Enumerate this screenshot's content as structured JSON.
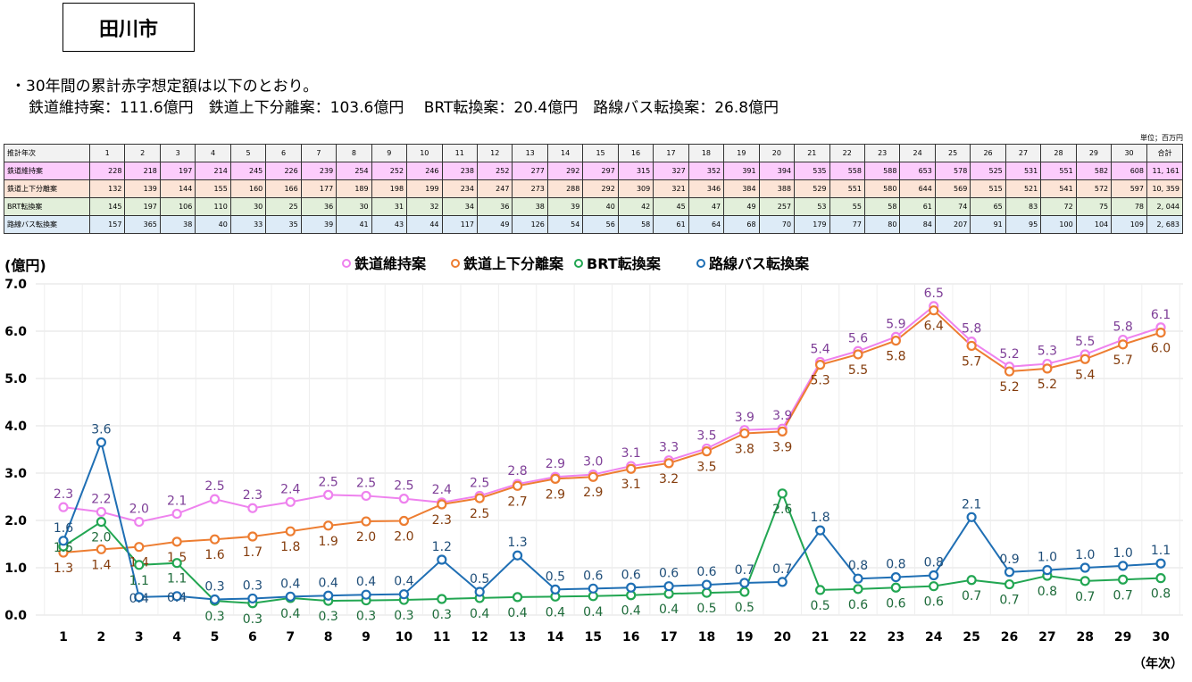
{
  "header": {
    "title": "田川市",
    "note_line1": "・30年間の累計赤字想定額は以下のとおり。",
    "note_line2": "鉄道維持案：111.6億円　鉄道上下分離案：103.6億円　 BRT転換案：20.4億円　路線バス転換案：26.8億円"
  },
  "table": {
    "unit": "単位；百万円",
    "header_label": "推計年次",
    "years": [
      "1",
      "2",
      "3",
      "4",
      "5",
      "6",
      "7",
      "8",
      "9",
      "10",
      "11",
      "12",
      "13",
      "14",
      "15",
      "16",
      "17",
      "18",
      "19",
      "20",
      "21",
      "22",
      "23",
      "24",
      "25",
      "26",
      "27",
      "28",
      "29",
      "30"
    ],
    "total_label": "合計",
    "rows": [
      {
        "label": "鉄道維持案",
        "values": [
          228,
          218,
          197,
          214,
          245,
          226,
          239,
          254,
          252,
          246,
          238,
          252,
          277,
          292,
          297,
          315,
          327,
          352,
          391,
          394,
          535,
          558,
          588,
          653,
          578,
          525,
          531,
          551,
          582,
          608
        ],
        "total": "11, 161"
      },
      {
        "label": "鉄道上下分離案",
        "values": [
          132,
          139,
          144,
          155,
          160,
          166,
          177,
          189,
          198,
          199,
          234,
          247,
          273,
          288,
          292,
          309,
          321,
          346,
          384,
          388,
          529,
          551,
          580,
          644,
          569,
          515,
          521,
          541,
          572,
          597
        ],
        "total": "10, 359"
      },
      {
        "label": "BRT転換案",
        "values": [
          145,
          197,
          106,
          110,
          30,
          25,
          36,
          30,
          31,
          32,
          34,
          36,
          38,
          39,
          40,
          42,
          45,
          47,
          49,
          257,
          53,
          55,
          58,
          61,
          74,
          65,
          83,
          72,
          75,
          78
        ],
        "total": "2, 044"
      },
      {
        "label": "路線バス転換案",
        "values": [
          157,
          365,
          38,
          40,
          33,
          35,
          39,
          41,
          43,
          44,
          117,
          49,
          126,
          54,
          56,
          58,
          61,
          64,
          68,
          70,
          179,
          77,
          80,
          84,
          207,
          91,
          95,
          100,
          104,
          109
        ],
        "total": "2, 683"
      }
    ]
  },
  "chart_data": {
    "type": "line",
    "ylabel": "(億円)",
    "xlabel": "（年次）",
    "ylim": [
      0,
      7
    ],
    "yticks": [
      "0.0",
      "1.0",
      "2.0",
      "3.0",
      "4.0",
      "5.0",
      "6.0",
      "7.0"
    ],
    "grid": true,
    "legend_placement": "top",
    "categories": [
      "1",
      "2",
      "3",
      "4",
      "5",
      "6",
      "7",
      "8",
      "9",
      "10",
      "11",
      "12",
      "13",
      "14",
      "15",
      "16",
      "17",
      "18",
      "19",
      "20",
      "21",
      "22",
      "23",
      "24",
      "25",
      "26",
      "27",
      "28",
      "29",
      "30"
    ],
    "series": [
      {
        "name": "鉄道維持案",
        "color": "#ee82ee",
        "label_color": "#7f3f98",
        "label_pos": "above",
        "values": [
          2.28,
          2.18,
          1.97,
          2.14,
          2.45,
          2.26,
          2.39,
          2.54,
          2.52,
          2.46,
          2.38,
          2.52,
          2.77,
          2.92,
          2.97,
          3.15,
          3.27,
          3.52,
          3.91,
          3.94,
          5.35,
          5.58,
          5.88,
          6.53,
          5.78,
          5.25,
          5.31,
          5.51,
          5.82,
          6.08
        ],
        "labels": [
          "2.3",
          "2.2",
          "2.0",
          "2.1",
          "2.5",
          "2.3",
          "2.4",
          "2.5",
          "2.5",
          "2.5",
          "2.4",
          "2.5",
          "2.8",
          "2.9",
          "3.0",
          "3.1",
          "3.3",
          "3.5",
          "3.9",
          "3.9",
          "5.4",
          "5.6",
          "5.9",
          "6.5",
          "5.8",
          "5.2",
          "5.3",
          "5.5",
          "5.8",
          "6.1"
        ]
      },
      {
        "name": "鉄道上下分離案",
        "color": "#ed7d31",
        "label_color": "#843c0c",
        "label_pos": "below",
        "values": [
          1.32,
          1.39,
          1.44,
          1.55,
          1.6,
          1.66,
          1.77,
          1.89,
          1.98,
          1.99,
          2.34,
          2.47,
          2.73,
          2.88,
          2.92,
          3.09,
          3.21,
          3.46,
          3.84,
          3.88,
          5.29,
          5.51,
          5.8,
          6.44,
          5.69,
          5.15,
          5.21,
          5.41,
          5.72,
          5.97
        ],
        "labels": [
          "1.3",
          "1.4",
          "1.4",
          "1.5",
          "1.6",
          "1.7",
          "1.8",
          "1.9",
          "2.0",
          "2.0",
          "2.3",
          "2.5",
          "2.7",
          "2.9",
          "2.9",
          "3.1",
          "3.2",
          "3.5",
          "3.8",
          "3.9",
          "5.3",
          "5.5",
          "5.8",
          "6.4",
          "5.7",
          "5.2",
          "5.2",
          "5.4",
          "5.7",
          "6.0"
        ]
      },
      {
        "name": "BRT転換案",
        "color": "#22a652",
        "label_color": "#1e6b3a",
        "label_pos": "below",
        "values": [
          1.45,
          1.97,
          1.06,
          1.1,
          0.3,
          0.25,
          0.36,
          0.3,
          0.31,
          0.32,
          0.34,
          0.36,
          0.38,
          0.39,
          0.4,
          0.42,
          0.45,
          0.47,
          0.49,
          2.57,
          0.53,
          0.55,
          0.58,
          0.61,
          0.74,
          0.65,
          0.83,
          0.72,
          0.75,
          0.78
        ],
        "labels": [
          "1.5",
          "2.0",
          "1.1",
          "1.1",
          "0.3",
          "0.3",
          "0.4",
          "0.3",
          "0.3",
          "0.3",
          "0.3",
          "0.4",
          "0.4",
          "0.4",
          "0.4",
          "0.4",
          "0.4",
          "0.5",
          "0.5",
          "2.6",
          "0.5",
          "0.6",
          "0.6",
          "0.6",
          "0.7",
          "0.7",
          "0.8",
          "0.7",
          "0.7",
          "0.8"
        ]
      },
      {
        "name": "路線バス転換案",
        "color": "#1f6fb4",
        "label_color": "#1f4e79",
        "label_pos": "above",
        "values": [
          1.57,
          3.65,
          0.38,
          0.4,
          0.33,
          0.35,
          0.39,
          0.41,
          0.43,
          0.44,
          1.17,
          0.49,
          1.26,
          0.54,
          0.56,
          0.58,
          0.61,
          0.64,
          0.68,
          0.7,
          1.79,
          0.77,
          0.8,
          0.84,
          2.07,
          0.91,
          0.95,
          1.0,
          1.04,
          1.09
        ],
        "labels": [
          "1.6",
          "3.6",
          "0.4",
          "0.4",
          "0.3",
          "0.3",
          "0.4",
          "0.4",
          "0.4",
          "0.4",
          "1.2",
          "0.5",
          "1.3",
          "0.5",
          "0.6",
          "0.6",
          "0.6",
          "0.6",
          "0.7",
          "0.7",
          "1.8",
          "0.8",
          "0.8",
          "0.8",
          "2.1",
          "0.9",
          "1.0",
          "1.0",
          "1.0",
          "1.1"
        ]
      }
    ]
  }
}
